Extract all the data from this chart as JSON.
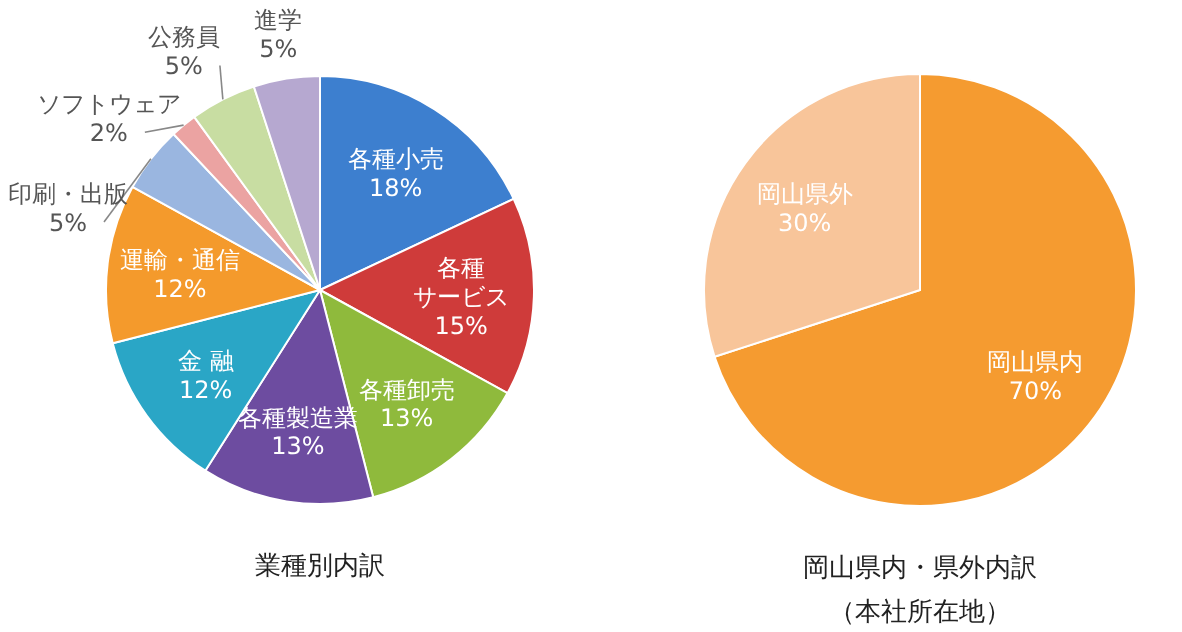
{
  "chart_data": [
    {
      "type": "pie",
      "title": "業種別内訳",
      "categories": [
        "各種小売",
        "各種サービス",
        "各種卸売",
        "各種製造業",
        "金 融",
        "運輸・通信",
        "印刷・出版",
        "ソフトウェア",
        "公務員",
        "進学"
      ],
      "values": [
        18,
        15,
        13,
        13,
        12,
        12,
        5,
        2,
        5,
        5
      ],
      "value_labels": [
        "18%",
        "15%",
        "13%",
        "13%",
        "12%",
        "12%",
        "5%",
        "2%",
        "5%",
        "5%"
      ],
      "colors": [
        "#3d7fcf",
        "#cf3b3a",
        "#8fba3c",
        "#6d4ca0",
        "#2aa6c6",
        "#f49a2c",
        "#9ab6e0",
        "#eba3a2",
        "#c8dda2",
        "#b6a8d0"
      ]
    },
    {
      "type": "pie",
      "title": "岡山県内・県外内訳",
      "subtitle": "（本社所在地）",
      "categories": [
        "岡山県内",
        "岡山県外"
      ],
      "values": [
        70,
        30
      ],
      "value_labels": [
        "70%",
        "30%"
      ],
      "colors": [
        "#f59b30",
        "#f8c59a"
      ]
    }
  ]
}
